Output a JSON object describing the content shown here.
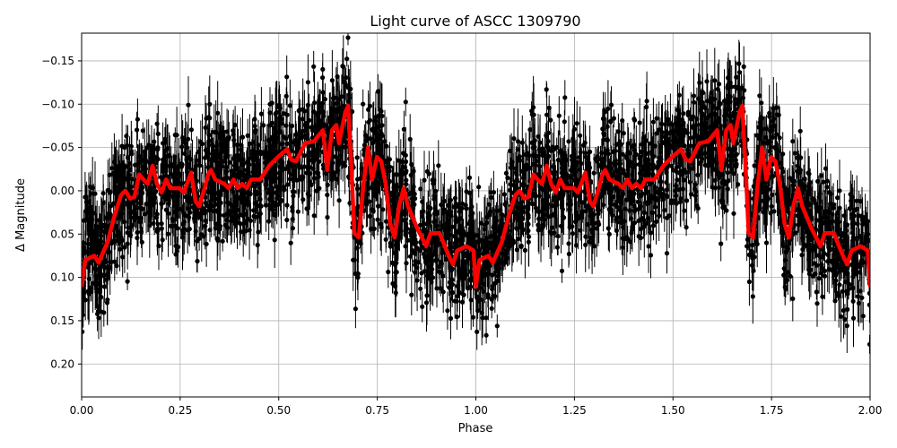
{
  "chart_data": {
    "type": "scatter",
    "title": "Light curve of ASCC 1309790",
    "xlabel": "Phase",
    "ylabel": "Δ Magnitude",
    "xlim": [
      0,
      2
    ],
    "ylim": [
      0.238,
      -0.182
    ],
    "y_inverted": true,
    "grid": true,
    "xticks": [
      "0.00",
      "0.25",
      "0.50",
      "0.75",
      "1.00",
      "1.25",
      "1.50",
      "1.75",
      "2.00"
    ],
    "xtick_values": [
      0,
      0.25,
      0.5,
      0.75,
      1.0,
      1.25,
      1.5,
      1.75,
      2.0
    ],
    "yticks": [
      "−0.15",
      "−0.10",
      "−0.05",
      "0.00",
      "0.05",
      "0.10",
      "0.15",
      "0.20"
    ],
    "ytick_values": [
      -0.15,
      -0.1,
      -0.05,
      0,
      0.05,
      0.1,
      0.15,
      0.2
    ],
    "colors": {
      "points": "#000000",
      "model": "#ff0000",
      "grid": "#b0b0b0"
    },
    "series": [
      {
        "kind": "errorbar-points",
        "color": "#000000",
        "description_of_extent": "dense black points with vertical error bars spanning roughly -0.18 to 0.24"
      },
      {
        "kind": "line",
        "color": "#ff0000",
        "repeats_every_phase": 1,
        "phase": [
          0.0,
          0.009,
          0.032,
          0.043,
          0.066,
          0.084,
          0.1,
          0.111,
          0.123,
          0.134,
          0.146,
          0.157,
          0.168,
          0.18,
          0.191,
          0.203,
          0.214,
          0.225,
          0.248,
          0.259,
          0.271,
          0.278,
          0.289,
          0.298,
          0.312,
          0.321,
          0.328,
          0.339,
          0.362,
          0.373,
          0.385,
          0.396,
          0.407,
          0.419,
          0.43,
          0.453,
          0.476,
          0.498,
          0.521,
          0.532,
          0.544,
          0.567,
          0.589,
          0.612,
          0.623,
          0.635,
          0.646,
          0.653,
          0.669,
          0.676,
          0.685,
          0.692,
          0.703,
          0.714,
          0.726,
          0.737,
          0.749,
          0.76,
          0.771,
          0.783,
          0.794,
          0.805,
          0.817,
          0.828,
          0.851,
          0.874,
          0.885,
          0.908,
          0.931,
          0.942,
          0.953,
          0.976,
          0.994,
          1.0
        ],
        "magnitude": [
          0.111,
          0.08,
          0.075,
          0.083,
          0.059,
          0.028,
          0.005,
          0.0,
          0.009,
          0.007,
          -0.019,
          -0.013,
          -0.008,
          -0.029,
          -0.008,
          0.002,
          -0.013,
          -0.003,
          -0.003,
          0.002,
          -0.013,
          -0.021,
          0.012,
          0.018,
          -0.003,
          -0.019,
          -0.024,
          -0.013,
          -0.008,
          -0.003,
          -0.013,
          -0.003,
          -0.008,
          -0.003,
          -0.013,
          -0.013,
          -0.029,
          -0.039,
          -0.048,
          -0.036,
          -0.034,
          -0.055,
          -0.057,
          -0.07,
          -0.024,
          -0.07,
          -0.076,
          -0.055,
          -0.091,
          -0.098,
          -0.019,
          0.049,
          0.054,
          -0.003,
          -0.05,
          -0.013,
          -0.039,
          -0.034,
          -0.008,
          0.038,
          0.054,
          0.018,
          -0.003,
          0.018,
          0.043,
          0.064,
          0.049,
          0.049,
          0.075,
          0.085,
          0.069,
          0.064,
          0.069,
          0.111
        ]
      }
    ]
  }
}
